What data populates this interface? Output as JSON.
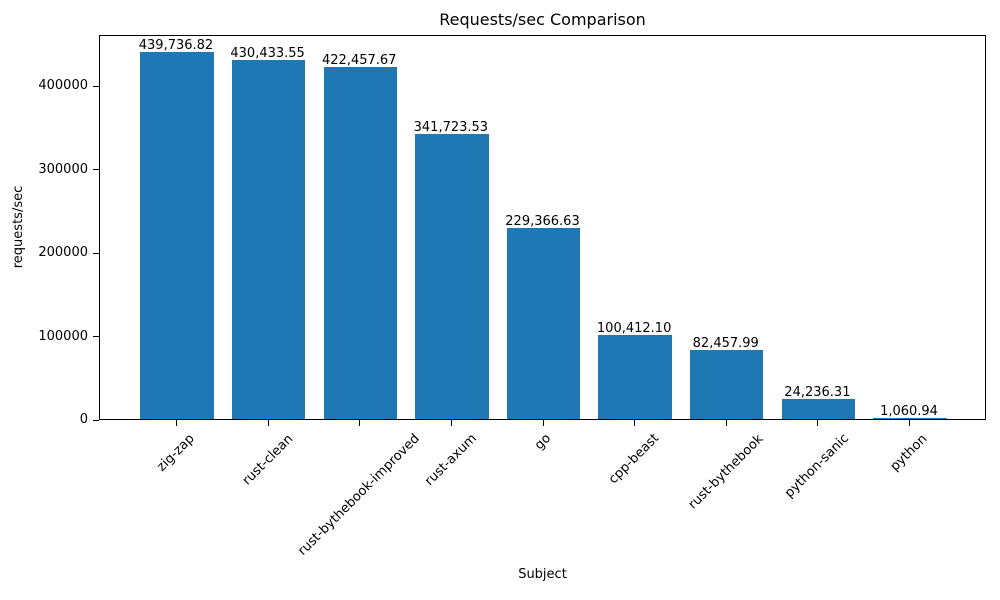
{
  "chart_data": {
    "type": "bar",
    "title": "Requests/sec Comparison",
    "xlabel": "Subject",
    "ylabel": "requests/sec",
    "categories": [
      "zig-zap",
      "rust-clean",
      "rust-bythebook-improved",
      "rust-axum",
      "go",
      "cpp-beast",
      "rust-bythebook",
      "python-sanic",
      "python"
    ],
    "values": [
      439736.82,
      430433.55,
      422457.67,
      341723.53,
      229366.63,
      100412.1,
      82457.99,
      24236.31,
      1060.94
    ],
    "value_labels": [
      "439,736.82",
      "430,433.55",
      "422,457.67",
      "341,723.53",
      "229,366.63",
      "100,412.10",
      "82,457.99",
      "24,236.31",
      "1,060.94"
    ],
    "ylim": [
      0,
      461724
    ],
    "yticks": [
      0,
      100000,
      200000,
      300000,
      400000
    ],
    "ytick_labels": [
      "0",
      "100000",
      "200000",
      "300000",
      "400000"
    ],
    "bar_color": "#1f77b4",
    "grid": false,
    "legend_position": "none"
  }
}
